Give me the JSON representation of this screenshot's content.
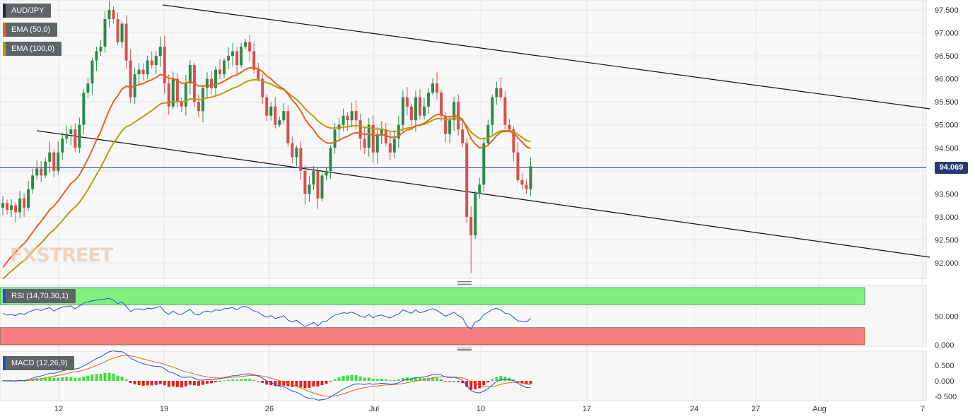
{
  "chart_data": [
    {
      "type": "candlestick",
      "symbol": "AUD/JPY",
      "legend": [
        {
          "label": "AUD/JPY",
          "color": "#1f2b44"
        },
        {
          "label": "EMA (50,0)",
          "color": "#e8621b"
        },
        {
          "label": "EMA (100,0)",
          "color": "#b29f0a"
        }
      ],
      "y_ticks": [
        "97.500",
        "97.000",
        "96.500",
        "96.000",
        "95.500",
        "95.000",
        "94.500",
        "94.000",
        "93.500",
        "93.000",
        "92.500",
        "92.000"
      ],
      "ylim": [
        91.7,
        97.65
      ],
      "current_price": "94.069",
      "x_ticks": [
        "12",
        "19",
        "26",
        "Jul",
        "10",
        "17",
        "24",
        "27",
        "Aug",
        "7"
      ],
      "close": [
        93.3,
        93.15,
        93.25,
        93.1,
        93.4,
        93.2,
        93.6,
        93.9,
        94.05,
        93.9,
        94.2,
        94.4,
        94.0,
        94.4,
        94.7,
        94.8,
        94.9,
        94.5,
        95.0,
        95.7,
        95.9,
        96.4,
        96.6,
        96.7,
        97.3,
        97.5,
        97.3,
        96.8,
        97.2,
        96.4,
        95.6,
        96.1,
        96.2,
        96.1,
        96.4,
        96.3,
        96.5,
        96.7,
        95.9,
        95.4,
        96.0,
        95.5,
        95.4,
        95.9,
        96.3,
        95.5,
        95.3,
        95.8,
        96.0,
        95.8,
        96.2,
        96.1,
        96.4,
        96.5,
        96.6,
        96.3,
        96.7,
        96.8,
        96.6,
        96.2,
        96.0,
        95.6,
        95.2,
        95.4,
        95.0,
        95.1,
        95.3,
        94.6,
        94.3,
        94.5,
        94.0,
        93.5,
        93.7,
        94.0,
        93.4,
        93.9,
        94.0,
        94.5,
        94.9,
        95.0,
        95.2,
        95.1,
        95.3,
        95.1,
        94.7,
        94.5,
        95.0,
        94.4,
        94.8,
        94.9,
        94.6,
        94.4,
        94.7,
        95.0,
        95.6,
        95.4,
        95.1,
        95.6,
        95.2,
        95.4,
        95.7,
        95.9,
        95.7,
        95.2,
        94.8,
        95.1,
        95.5,
        94.9,
        94.6,
        93.0,
        92.6,
        93.5,
        93.7,
        94.6,
        95.0,
        95.6,
        95.8,
        95.6,
        95.0,
        94.9,
        94.4,
        93.8,
        93.7,
        93.6,
        94.1
      ],
      "rsi": {
        "label": "RSI (14,70,30,1)",
        "y_ticks": [
          "50.000",
          "0.000"
        ],
        "ylim": [
          0,
          100
        ],
        "overbought": 70,
        "oversold": 30,
        "values": [
          55,
          52,
          53,
          51,
          55,
          53,
          57,
          60,
          62,
          60,
          63,
          65,
          59,
          63,
          66,
          67,
          68,
          63,
          68,
          73,
          75,
          77,
          78,
          79,
          80,
          81,
          78,
          72,
          75,
          67,
          58,
          62,
          63,
          61,
          64,
          63,
          65,
          67,
          58,
          53,
          59,
          54,
          53,
          58,
          62,
          54,
          52,
          57,
          59,
          57,
          61,
          60,
          63,
          64,
          65,
          61,
          66,
          67,
          64,
          59,
          57,
          52,
          48,
          51,
          46,
          48,
          51,
          43,
          40,
          43,
          37,
          32,
          35,
          39,
          33,
          40,
          41,
          47,
          52,
          54,
          56,
          55,
          57,
          54,
          50,
          48,
          53,
          47,
          51,
          52,
          49,
          47,
          51,
          54,
          61,
          58,
          55,
          61,
          56,
          58,
          61,
          63,
          60,
          55,
          50,
          53,
          57,
          51,
          47,
          33,
          28,
          40,
          43,
          53,
          57,
          62,
          64,
          61,
          55,
          54,
          48,
          42,
          41,
          40,
          46
        ]
      },
      "macd": {
        "label": "MACD (12,26,9)",
        "y_ticks": [
          "0.500",
          "0.000",
          "-0.500"
        ],
        "ylim": [
          -0.6,
          0.75
        ]
      }
    }
  ]
}
